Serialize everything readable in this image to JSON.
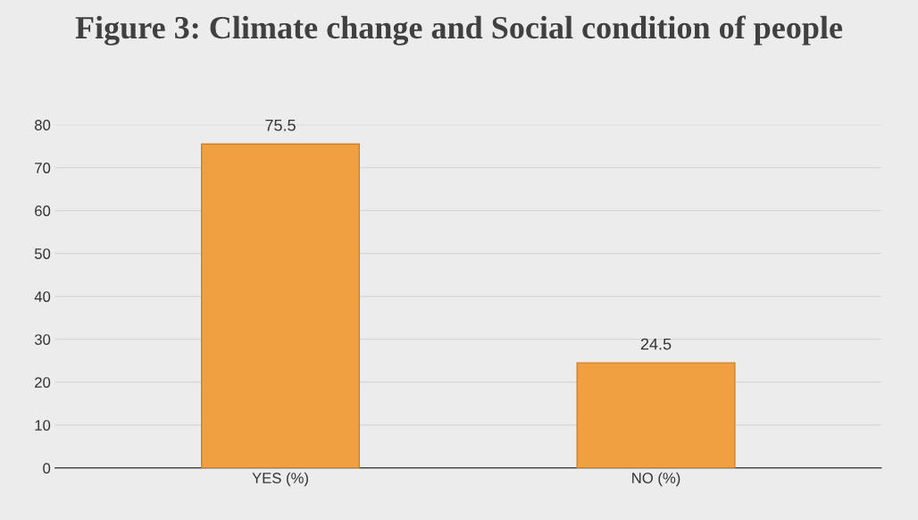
{
  "chart_data": {
    "type": "bar",
    "title": "Figure 3: Climate change and Social condition of people",
    "categories": [
      "YES (%)",
      "NO (%)"
    ],
    "values": [
      75.5,
      24.5
    ],
    "color": "#f0a040",
    "ylim": [
      0,
      80
    ],
    "yticks": [
      0,
      10,
      20,
      30,
      40,
      50,
      60,
      70,
      80
    ],
    "grid": "y",
    "data_labels": true
  }
}
